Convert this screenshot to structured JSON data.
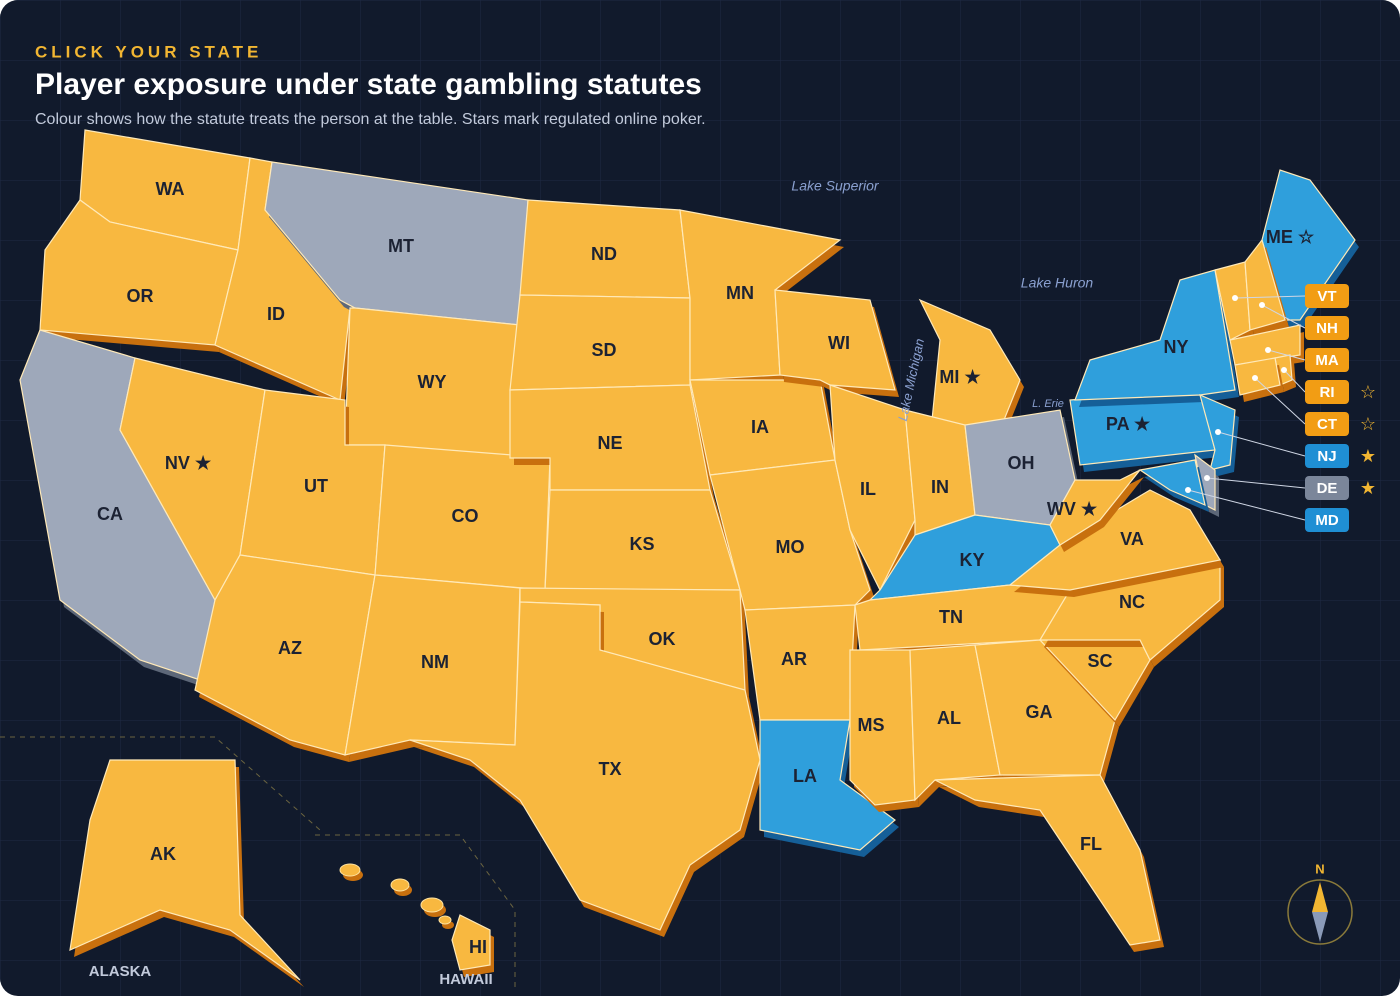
{
  "header": {
    "eyebrow": "CLICK YOUR STATE",
    "title": "Player exposure under state gambling statutes",
    "subtitle": "Colour shows how the statute treats the person at the table. Stars mark regulated online poker."
  },
  "lakes": [
    "Lake Superior",
    "Lake Huron",
    "Lake Michigan",
    "L. Erie"
  ],
  "insets": [
    "ALASKA",
    "HAWAII"
  ],
  "compass": "N",
  "states": [
    {
      "code": "WA",
      "color": "#f8b840"
    },
    {
      "code": "OR",
      "color": "#f8b840"
    },
    {
      "code": "CA",
      "color": "#9ea8ba"
    },
    {
      "code": "NV",
      "color": "#f8b840",
      "star": "★"
    },
    {
      "code": "ID",
      "color": "#f8b840"
    },
    {
      "code": "MT",
      "color": "#9ea8ba"
    },
    {
      "code": "WY",
      "color": "#f8b840"
    },
    {
      "code": "UT",
      "color": "#f8b840"
    },
    {
      "code": "AZ",
      "color": "#f8b840"
    },
    {
      "code": "CO",
      "color": "#f8b840"
    },
    {
      "code": "NM",
      "color": "#f8b840"
    },
    {
      "code": "ND",
      "color": "#f8b840"
    },
    {
      "code": "SD",
      "color": "#f8b840"
    },
    {
      "code": "NE",
      "color": "#f8b840"
    },
    {
      "code": "KS",
      "color": "#f8b840"
    },
    {
      "code": "OK",
      "color": "#f8b840"
    },
    {
      "code": "TX",
      "color": "#f8b840"
    },
    {
      "code": "MN",
      "color": "#f8b840"
    },
    {
      "code": "IA",
      "color": "#f8b840"
    },
    {
      "code": "MO",
      "color": "#f8b840"
    },
    {
      "code": "AR",
      "color": "#f8b840"
    },
    {
      "code": "LA",
      "color": "#2f9fdc"
    },
    {
      "code": "WI",
      "color": "#f8b840"
    },
    {
      "code": "IL",
      "color": "#f8b840"
    },
    {
      "code": "MI",
      "color": "#f8b840",
      "star": "★"
    },
    {
      "code": "IN",
      "color": "#f8b840"
    },
    {
      "code": "OH",
      "color": "#9ea8ba"
    },
    {
      "code": "KY",
      "color": "#2f9fdc"
    },
    {
      "code": "TN",
      "color": "#f8b840"
    },
    {
      "code": "MS",
      "color": "#f8b840"
    },
    {
      "code": "AL",
      "color": "#f8b840"
    },
    {
      "code": "GA",
      "color": "#f8b840"
    },
    {
      "code": "FL",
      "color": "#f8b840"
    },
    {
      "code": "SC",
      "color": "#f8b840"
    },
    {
      "code": "NC",
      "color": "#f8b840"
    },
    {
      "code": "VA",
      "color": "#f8b840"
    },
    {
      "code": "WV",
      "color": "#f8b840",
      "star": "★"
    },
    {
      "code": "PA",
      "color": "#2f9fdc",
      "star": "★"
    },
    {
      "code": "NY",
      "color": "#2f9fdc"
    },
    {
      "code": "ME",
      "color": "#2f9fdc",
      "star": "☆"
    },
    {
      "code": "AK",
      "color": "#f8b840"
    },
    {
      "code": "HI",
      "color": "#f8b840"
    },
    {
      "code": "VT",
      "color": "#f8b840",
      "callout": true
    },
    {
      "code": "NH",
      "color": "#f8b840",
      "callout": true
    },
    {
      "code": "MA",
      "color": "#f8b840",
      "callout": true
    },
    {
      "code": "RI",
      "color": "#f8b840",
      "star": "☆",
      "callout": true
    },
    {
      "code": "CT",
      "color": "#f8b840",
      "star": "☆",
      "callout": true
    },
    {
      "code": "NJ",
      "color": "#2f9fdc",
      "star": "★",
      "callout": true
    },
    {
      "code": "DE",
      "color": "#9ea8ba",
      "star": "★",
      "callout": true
    },
    {
      "code": "MD",
      "color": "#2f9fdc",
      "callout": true
    }
  ]
}
